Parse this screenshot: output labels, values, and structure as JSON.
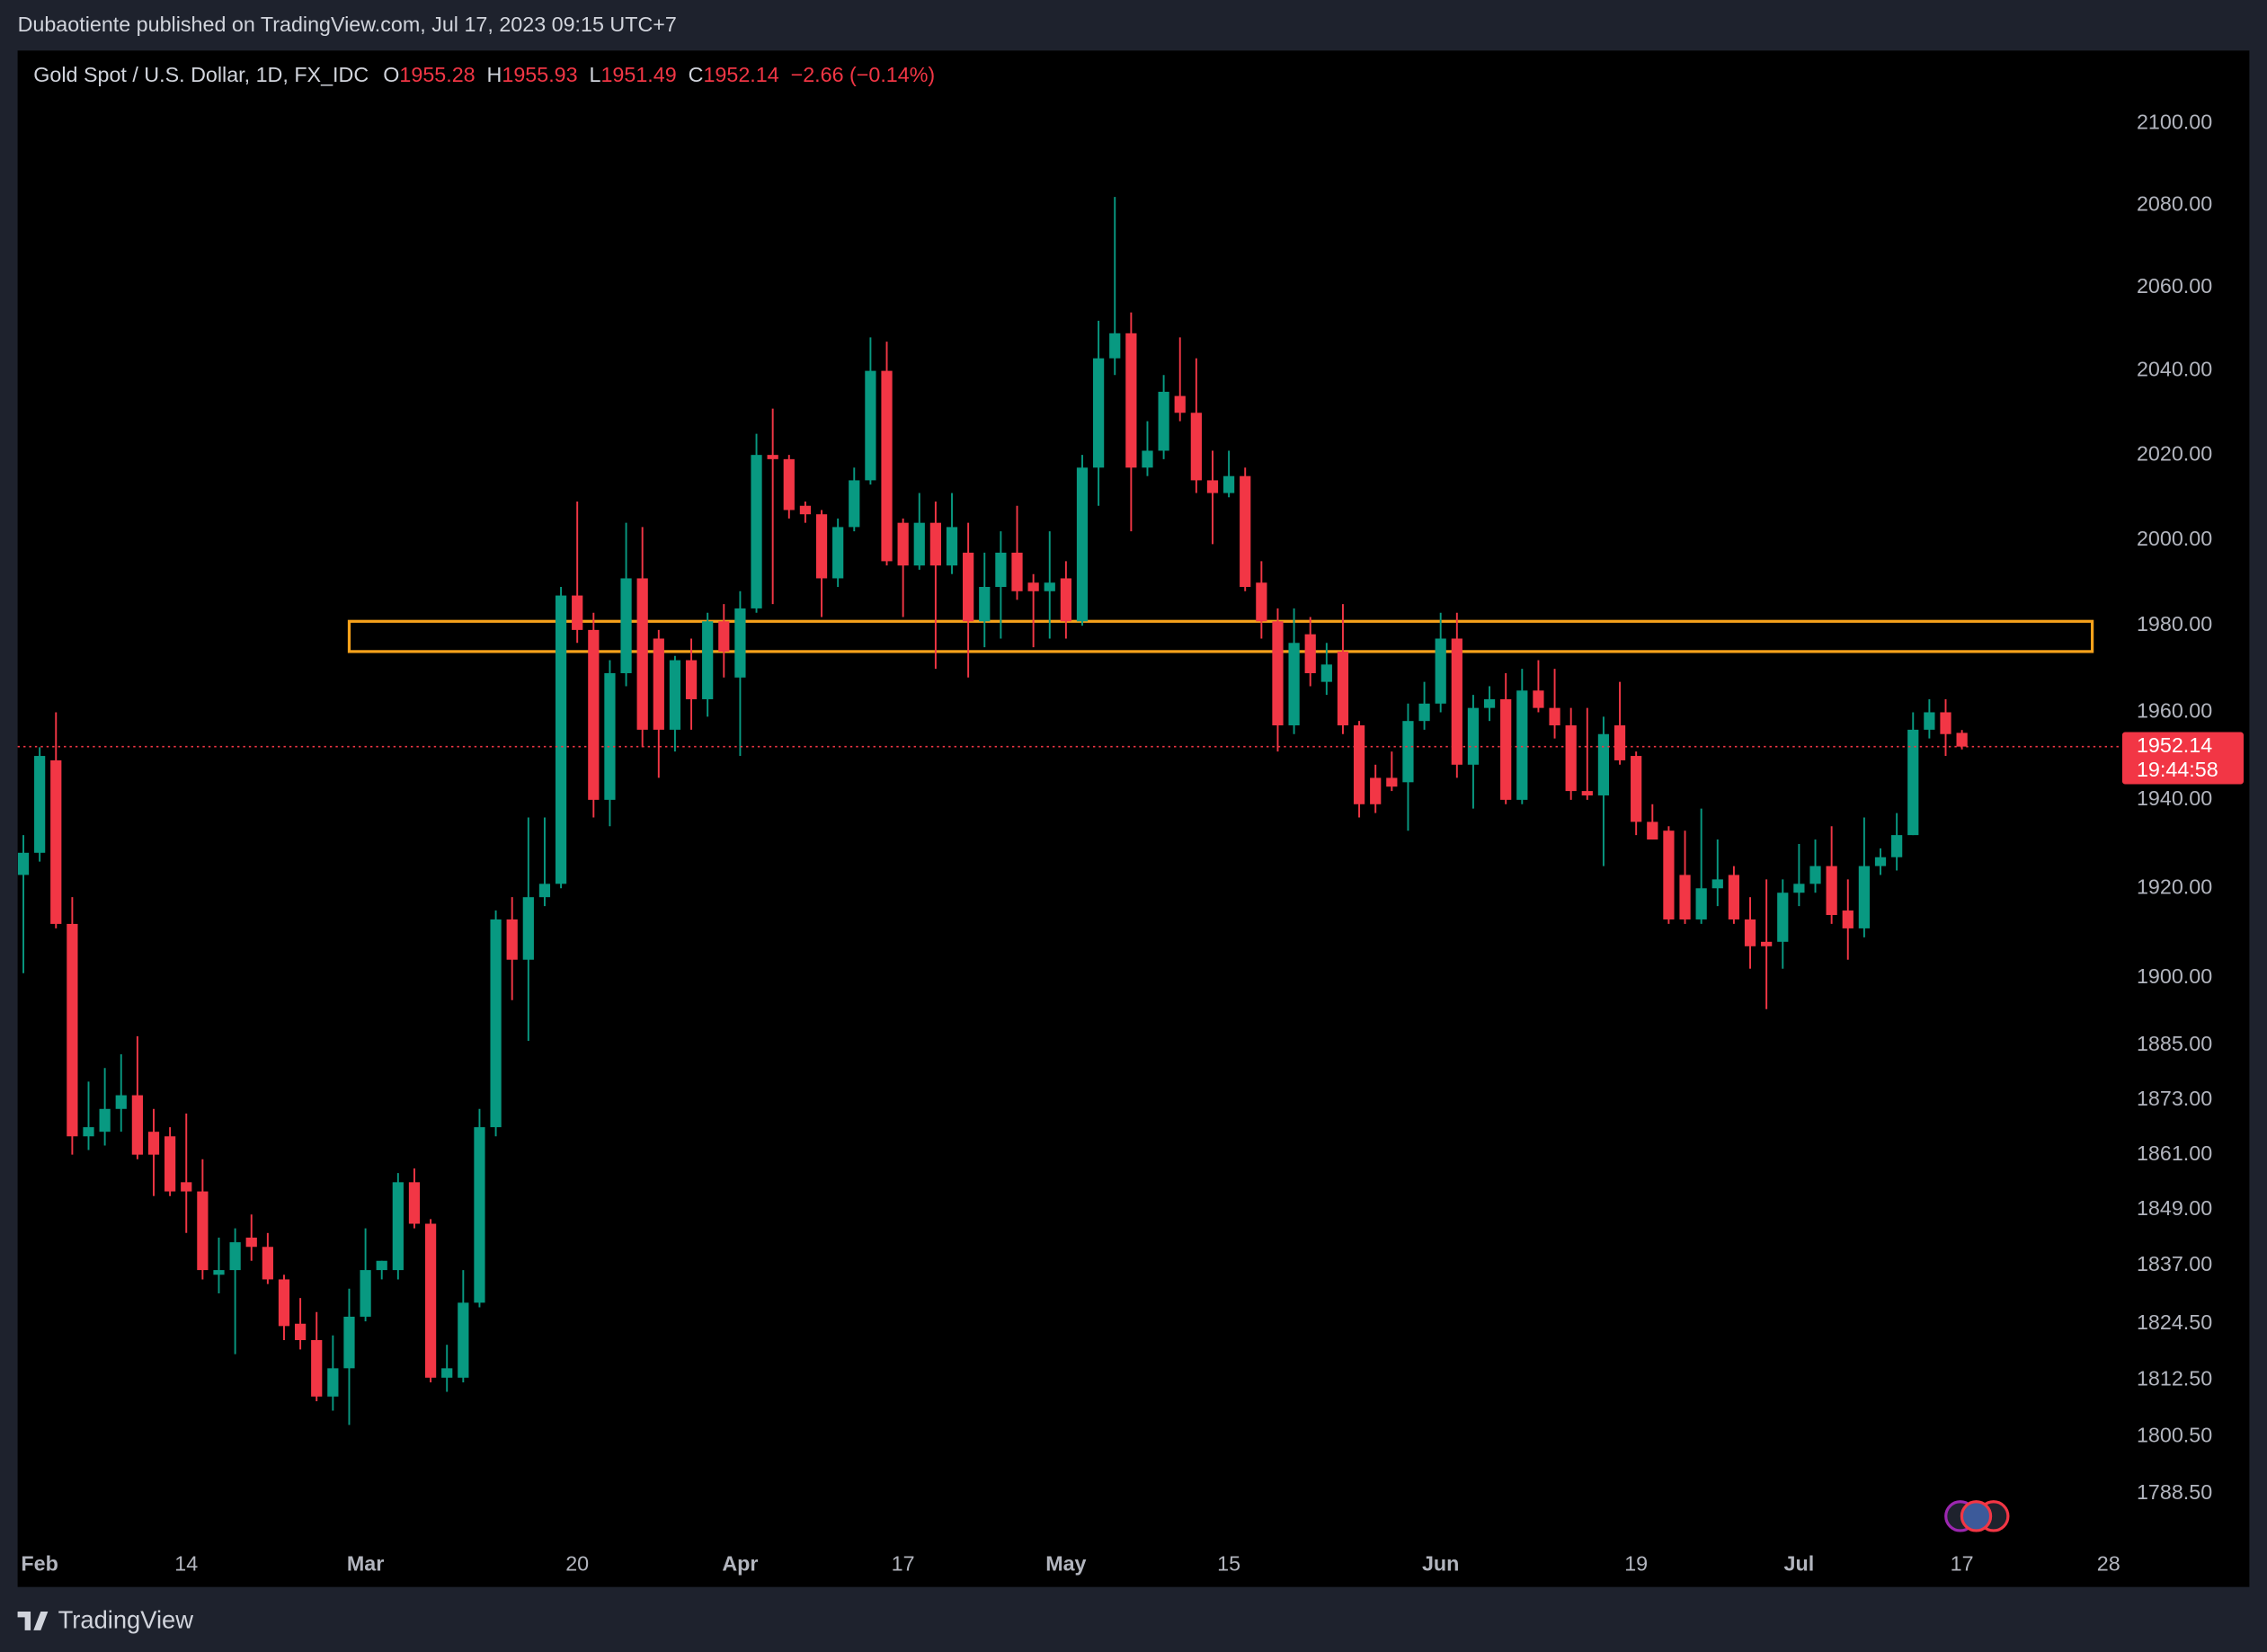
{
  "header": {
    "publisher": "Dubaotiente published on TradingView.com, Jul 17, 2023 09:15 UTC+7"
  },
  "footer": {
    "brand": "TradingView"
  },
  "chart_data": {
    "type": "candlestick",
    "title": "Gold Spot / U.S. Dollar, 1D, FX_IDC",
    "ohlc_letters": [
      "O",
      "H",
      "L",
      "C"
    ],
    "change": "−2.66 (−0.14%)",
    "countdown": "19:44:58",
    "up_color": "#089981",
    "down_color": "#f23645",
    "log_scale": true,
    "grid": false,
    "ylim": [
      1779,
      2118
    ],
    "yticks": [
      {
        "value": 2100,
        "label": "2100.00"
      },
      {
        "value": 2080,
        "label": "2080.00"
      },
      {
        "value": 2060,
        "label": "2060.00"
      },
      {
        "value": 2040,
        "label": "2040.00"
      },
      {
        "value": 2020,
        "label": "2020.00"
      },
      {
        "value": 2000,
        "label": "2000.00"
      },
      {
        "value": 1980,
        "label": "1980.00"
      },
      {
        "value": 1960,
        "label": "1960.00"
      },
      {
        "value": 1940,
        "label": "1940.00"
      },
      {
        "value": 1920,
        "label": "1920.00"
      },
      {
        "value": 1900,
        "label": "1900.00"
      },
      {
        "value": 1885,
        "label": "1885.00"
      },
      {
        "value": 1873,
        "label": "1873.00"
      },
      {
        "value": 1861,
        "label": "1861.00"
      },
      {
        "value": 1849,
        "label": "1849.00"
      },
      {
        "value": 1837,
        "label": "1837.00"
      },
      {
        "value": 1824.5,
        "label": "1824.50"
      },
      {
        "value": 1812.5,
        "label": "1812.50"
      },
      {
        "value": 1800.5,
        "label": "1800.50"
      },
      {
        "value": 1788.5,
        "label": "1788.50"
      }
    ],
    "zone": {
      "from": 20,
      "to": 127,
      "top": 1981,
      "bottom": 1974,
      "color": "#f7a21b"
    },
    "categories": [
      null,
      "Feb",
      null,
      null,
      null,
      null,
      null,
      null,
      null,
      null,
      "14",
      null,
      null,
      null,
      null,
      null,
      null,
      null,
      null,
      null,
      null,
      "Mar",
      null,
      null,
      null,
      null,
      null,
      null,
      null,
      null,
      null,
      null,
      null,
      null,
      "20",
      null,
      null,
      null,
      null,
      null,
      null,
      null,
      null,
      null,
      "Apr",
      null,
      null,
      null,
      null,
      null,
      null,
      null,
      null,
      null,
      "17",
      null,
      null,
      null,
      null,
      null,
      null,
      null,
      null,
      null,
      "May",
      null,
      null,
      null,
      null,
      null,
      null,
      null,
      null,
      null,
      "15",
      null,
      null,
      null,
      null,
      null,
      null,
      null,
      null,
      null,
      null,
      null,
      null,
      "Jun",
      null,
      null,
      null,
      null,
      null,
      null,
      null,
      null,
      null,
      null,
      null,
      "19",
      null,
      null,
      null,
      null,
      null,
      null,
      null,
      null,
      null,
      "Jul",
      null,
      null,
      null,
      null,
      null,
      null,
      null,
      null,
      null,
      "17",
      null,
      null,
      null,
      null,
      null,
      null,
      null,
      null,
      "28"
    ],
    "open": [
      1923,
      1928,
      1949,
      1912,
      1865,
      1866,
      1871,
      1874,
      1866,
      1865,
      1855,
      1853,
      1835,
      1836,
      1843,
      1841,
      1834,
      1824.5,
      1821,
      1809,
      1815,
      1826,
      1836,
      1836,
      1855,
      1846,
      1813,
      1813,
      1829,
      1867,
      1913,
      1904,
      1918,
      1921,
      1987,
      1979,
      1940,
      1969,
      1991,
      1977,
      1956,
      1972,
      1963,
      1981,
      1968,
      1984,
      2020,
      2019,
      2008,
      2006,
      1991,
      2003,
      2014,
      2040,
      2004,
      1994,
      2004,
      1994,
      1997,
      1981,
      1989,
      1997,
      1990,
      1988,
      1991,
      1981,
      2017,
      2043,
      2049,
      2017,
      2021,
      2034,
      2030,
      2014,
      2011,
      2015,
      1990,
      1981,
      1957,
      1978,
      1967,
      1974,
      1957,
      1945,
      1945,
      1944,
      1958,
      1962,
      1977,
      1948,
      1961,
      1963,
      1940,
      1965,
      1961,
      1957,
      1942,
      1941,
      1957,
      1950,
      1935,
      1933,
      1923,
      1913,
      1920,
      1923,
      1913,
      1908,
      1908,
      1919,
      1921,
      1925,
      1915,
      1911,
      1925,
      1927,
      1932,
      1956,
      1960,
      1955.28,
      null,
      null,
      null,
      null,
      null,
      null,
      null,
      null,
      null
    ],
    "high": [
      1932,
      1952,
      1960,
      1918,
      1877,
      1880,
      1883,
      1887,
      1871,
      1867,
      1870,
      1860,
      1843,
      1845,
      1848,
      1844,
      1835,
      1830,
      1827,
      1822,
      1832,
      1845,
      1838,
      1857,
      1858,
      1847,
      1820,
      1836,
      1871,
      1915,
      1918,
      1936,
      1936,
      1989,
      2009,
      1983,
      1972,
      2004,
      2003,
      1979,
      1973,
      1977,
      1983,
      1985,
      1988,
      2025,
      2031,
      2020,
      2009,
      2007,
      2005,
      2017,
      2048,
      2047,
      2005,
      2011,
      2009,
      2011,
      2004,
      1997,
      2002,
      2008,
      1992,
      2002,
      1995,
      2020,
      2052,
      2082,
      2054,
      2028,
      2039,
      2048,
      2043,
      2021,
      2021,
      2017,
      1995,
      1984,
      1984,
      1982,
      1976,
      1985,
      1958,
      1948,
      1951,
      1962,
      1967,
      1983,
      1983,
      1964,
      1966,
      1969,
      1970,
      1972,
      1970,
      1961,
      1961,
      1959,
      1967,
      1951,
      1939,
      1934,
      1933,
      1938,
      1931,
      1925,
      1918,
      1922,
      1922,
      1930,
      1931,
      1934,
      1922,
      1936,
      1929,
      1937,
      1960,
      1963,
      1963,
      1955.93,
      null,
      null,
      null,
      null,
      null,
      null,
      null,
      null,
      null
    ],
    "low": [
      1901,
      1926,
      1911,
      1861,
      1862,
      1863,
      1866,
      1860,
      1852,
      1852,
      1844,
      1834,
      1831,
      1818,
      1838,
      1833,
      1821,
      1819,
      1808,
      1806,
      1803,
      1825,
      1834,
      1834,
      1845,
      1812,
      1810,
      1812,
      1828,
      1865,
      1895,
      1886,
      1916,
      1920,
      1976,
      1936,
      1934,
      1966,
      1952,
      1945,
      1951,
      1956,
      1959,
      1968,
      1950,
      1983,
      1985,
      2005,
      2004,
      1982,
      1989,
      2002,
      2013,
      1994,
      1982,
      1993,
      1970,
      1992,
      1968,
      1975,
      1977,
      1986,
      1975,
      1977,
      1977,
      1980,
      2008,
      2039,
      2002,
      2015,
      2019,
      2028,
      2011,
      1999,
      2010,
      1988,
      1977,
      1951,
      1955,
      1966,
      1964,
      1955,
      1936,
      1937,
      1942,
      1933,
      1956,
      1960,
      1945,
      1938,
      1958,
      1939,
      1939,
      1960,
      1954,
      1940,
      1940,
      1925,
      1948,
      1932,
      1931,
      1912,
      1912,
      1912,
      1916,
      1912,
      1902,
      1893,
      1902,
      1916,
      1919,
      1912,
      1904,
      1909,
      1923,
      1924,
      1932,
      1954,
      1950,
      1951.49,
      null,
      null,
      null,
      null,
      null,
      null,
      null,
      null,
      null
    ],
    "close": [
      1928,
      1950,
      1912,
      1865,
      1867,
      1871,
      1874,
      1861,
      1861,
      1853,
      1853,
      1836,
      1836,
      1842,
      1841,
      1834,
      1824,
      1821,
      1809,
      1815,
      1826,
      1836,
      1838,
      1855,
      1846,
      1813,
      1815,
      1829,
      1867,
      1913,
      1904,
      1918,
      1921,
      1987,
      1979,
      1940,
      1969,
      1991,
      1956,
      1956,
      1972,
      1963,
      1981,
      1974,
      1984,
      2020,
      2019,
      2007,
      2006,
      1991,
      2003,
      2014,
      2040,
      1995,
      1994,
      2004,
      1994,
      2003,
      1981,
      1989,
      1997,
      1988,
      1988,
      1990,
      1981,
      2017,
      2043,
      2049,
      2017,
      2021,
      2035,
      2030,
      2014,
      2011,
      2015,
      1989,
      1981,
      1957,
      1976,
      1969,
      1971,
      1957,
      1939,
      1939,
      1943,
      1958,
      1962,
      1977,
      1948,
      1961,
      1963,
      1940,
      1965,
      1961,
      1957,
      1942,
      1941,
      1955,
      1949,
      1935,
      1931,
      1913,
      1913,
      1920,
      1922,
      1913,
      1907,
      1907,
      1919,
      1921,
      1925,
      1914,
      1911,
      1925,
      1927,
      1932,
      1956,
      1960,
      1955,
      1952.14,
      null,
      null,
      null,
      null,
      null,
      null,
      null,
      null,
      null
    ]
  }
}
